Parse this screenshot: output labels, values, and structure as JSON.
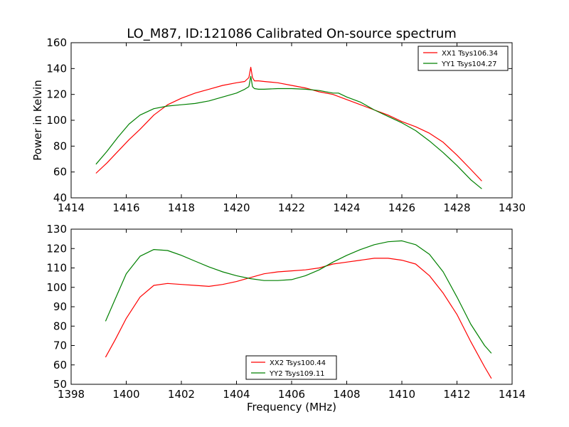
{
  "title": "LO_M87, ID:121086 Calibrated On-source spectrum",
  "xlabel": "Frequency (MHz)",
  "colors": {
    "red": "#ff0000",
    "green": "#008000"
  },
  "chart_data": [
    {
      "type": "line",
      "title": "LO_M87, ID:121086 Calibrated On-source spectrum",
      "xlabel": "",
      "ylabel": "Power in Kelvin",
      "xlim": [
        1414,
        1430
      ],
      "ylim": [
        40,
        160
      ],
      "xticks": [
        1414,
        1416,
        1418,
        1420,
        1422,
        1424,
        1426,
        1428,
        1430
      ],
      "yticks": [
        40,
        60,
        80,
        100,
        120,
        140,
        160
      ],
      "legend": "top-right",
      "series": [
        {
          "name": "XX1 Tsys106.34",
          "color": "#ff0000",
          "x": [
            1414.9,
            1415.3,
            1415.7,
            1416.1,
            1416.5,
            1417.0,
            1417.5,
            1418.0,
            1418.5,
            1419.0,
            1419.5,
            1420.0,
            1420.3,
            1420.45,
            1420.52,
            1420.58,
            1420.65,
            1420.8,
            1421.0,
            1421.5,
            1422.0,
            1422.5,
            1423.0,
            1423.5,
            1424.0,
            1424.5,
            1425.0,
            1425.5,
            1426.0,
            1426.5,
            1427.0,
            1427.5,
            1428.0,
            1428.5,
            1428.9
          ],
          "values": [
            59,
            67,
            76,
            85,
            93,
            104,
            112,
            117,
            121,
            124,
            127,
            129,
            130,
            133,
            141,
            133,
            130.5,
            130.5,
            130,
            129,
            127,
            125,
            122,
            120,
            116,
            112,
            108,
            104,
            99,
            95,
            90,
            83,
            73,
            62,
            53
          ]
        },
        {
          "name": "YY1 Tsys104.27",
          "color": "#008000",
          "x": [
            1414.9,
            1415.3,
            1415.7,
            1416.1,
            1416.5,
            1417.0,
            1417.5,
            1418.0,
            1418.5,
            1419.0,
            1419.5,
            1420.0,
            1420.3,
            1420.45,
            1420.52,
            1420.58,
            1420.65,
            1420.8,
            1421.0,
            1421.5,
            1422.0,
            1422.5,
            1423.0,
            1423.5,
            1423.7,
            1424.0,
            1424.5,
            1425.0,
            1425.5,
            1426.0,
            1426.5,
            1427.0,
            1427.5,
            1428.0,
            1428.5,
            1428.9
          ],
          "values": [
            66,
            76,
            87,
            97,
            104,
            109,
            111,
            112,
            113,
            115,
            118,
            121,
            124,
            126,
            134,
            126,
            124.5,
            124,
            124,
            124.5,
            124.5,
            124,
            123,
            121,
            121,
            118,
            114,
            108,
            103,
            98,
            92,
            84,
            75,
            65,
            54,
            47
          ]
        }
      ]
    },
    {
      "type": "line",
      "title": "",
      "xlabel": "Frequency (MHz)",
      "ylabel": "",
      "xlim": [
        1398,
        1414
      ],
      "ylim": [
        50,
        130
      ],
      "xticks": [
        1398,
        1400,
        1402,
        1404,
        1406,
        1408,
        1410,
        1412,
        1414
      ],
      "yticks": [
        50,
        60,
        70,
        80,
        90,
        100,
        110,
        120,
        130
      ],
      "legend": "lower-center",
      "series": [
        {
          "name": "XX2 Tsys100.44",
          "color": "#ff0000",
          "x": [
            1399.25,
            1399.6,
            1400.0,
            1400.5,
            1401.0,
            1401.5,
            1402.0,
            1402.5,
            1403.0,
            1403.5,
            1404.0,
            1404.5,
            1405.0,
            1405.5,
            1406.0,
            1406.5,
            1407.0,
            1407.5,
            1408.0,
            1408.5,
            1409.0,
            1409.5,
            1410.0,
            1410.5,
            1411.0,
            1411.5,
            1412.0,
            1412.5,
            1413.0,
            1413.25
          ],
          "values": [
            64,
            73,
            84,
            95,
            101,
            102,
            101.5,
            101,
            100.5,
            101.5,
            103,
            105,
            107,
            108,
            108.5,
            109,
            110,
            112,
            113,
            114,
            115,
            115,
            114,
            112,
            106,
            97,
            86,
            72,
            59,
            53
          ]
        },
        {
          "name": "YY2 Tsys109.11",
          "color": "#008000",
          "x": [
            1399.25,
            1399.6,
            1400.0,
            1400.5,
            1401.0,
            1401.5,
            1402.0,
            1402.5,
            1403.0,
            1403.5,
            1404.0,
            1404.5,
            1405.0,
            1405.5,
            1406.0,
            1406.5,
            1407.0,
            1407.5,
            1408.0,
            1408.5,
            1409.0,
            1409.5,
            1410.0,
            1410.5,
            1411.0,
            1411.5,
            1412.0,
            1412.5,
            1413.0,
            1413.25
          ],
          "values": [
            82.5,
            94,
            107,
            116,
            119.5,
            119,
            116.5,
            113.5,
            110.5,
            108,
            106,
            104.5,
            103.5,
            103.5,
            104,
            106,
            109,
            113,
            116.5,
            119.5,
            122,
            123.5,
            124,
            122,
            117,
            108,
            95,
            81,
            70,
            66
          ]
        }
      ]
    }
  ]
}
